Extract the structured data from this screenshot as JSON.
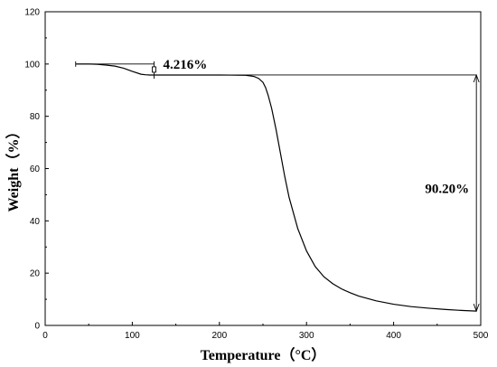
{
  "chart_data": {
    "type": "line",
    "title": "",
    "xlabel": "Temperature（°C）",
    "ylabel": "Weight（%）",
    "xlim": [
      0,
      500
    ],
    "ylim": [
      0,
      120
    ],
    "xticks": [
      "0",
      "100",
      "200",
      "300",
      "400",
      "500"
    ],
    "yticks": [
      "0",
      "20",
      "40",
      "60",
      "80",
      "100",
      "120"
    ],
    "grid": false,
    "series": [
      {
        "x": [
          35,
          50,
          60,
          70,
          80,
          90,
          100,
          110,
          115,
          120,
          125,
          130,
          150,
          180,
          200,
          220,
          230,
          235,
          240,
          245,
          250,
          253,
          256,
          260,
          265,
          270,
          275,
          280,
          290,
          300,
          310,
          320,
          330,
          340,
          350,
          360,
          380,
          400,
          420,
          440,
          460,
          480,
          495
        ],
        "values": [
          100.0,
          100.0,
          99.9,
          99.6,
          99.2,
          98.4,
          97.2,
          96.1,
          95.9,
          95.8,
          95.8,
          95.8,
          95.8,
          95.8,
          95.8,
          95.75,
          95.7,
          95.5,
          95.2,
          94.5,
          93.0,
          91.0,
          88.0,
          83.0,
          75.0,
          66.0,
          57.0,
          49.0,
          37.0,
          28.5,
          22.5,
          18.6,
          16.0,
          14.0,
          12.5,
          11.2,
          9.4,
          8.1,
          7.2,
          6.6,
          6.1,
          5.7,
          5.5
        ]
      }
    ],
    "annotations": [
      {
        "text": "4.216%",
        "x_from": 35,
        "x_to": 125,
        "y_from": 100.0,
        "y_to": 95.8
      },
      {
        "text": "90.20%",
        "x": 495,
        "y_from": 95.8,
        "y_to": 5.5
      }
    ]
  }
}
